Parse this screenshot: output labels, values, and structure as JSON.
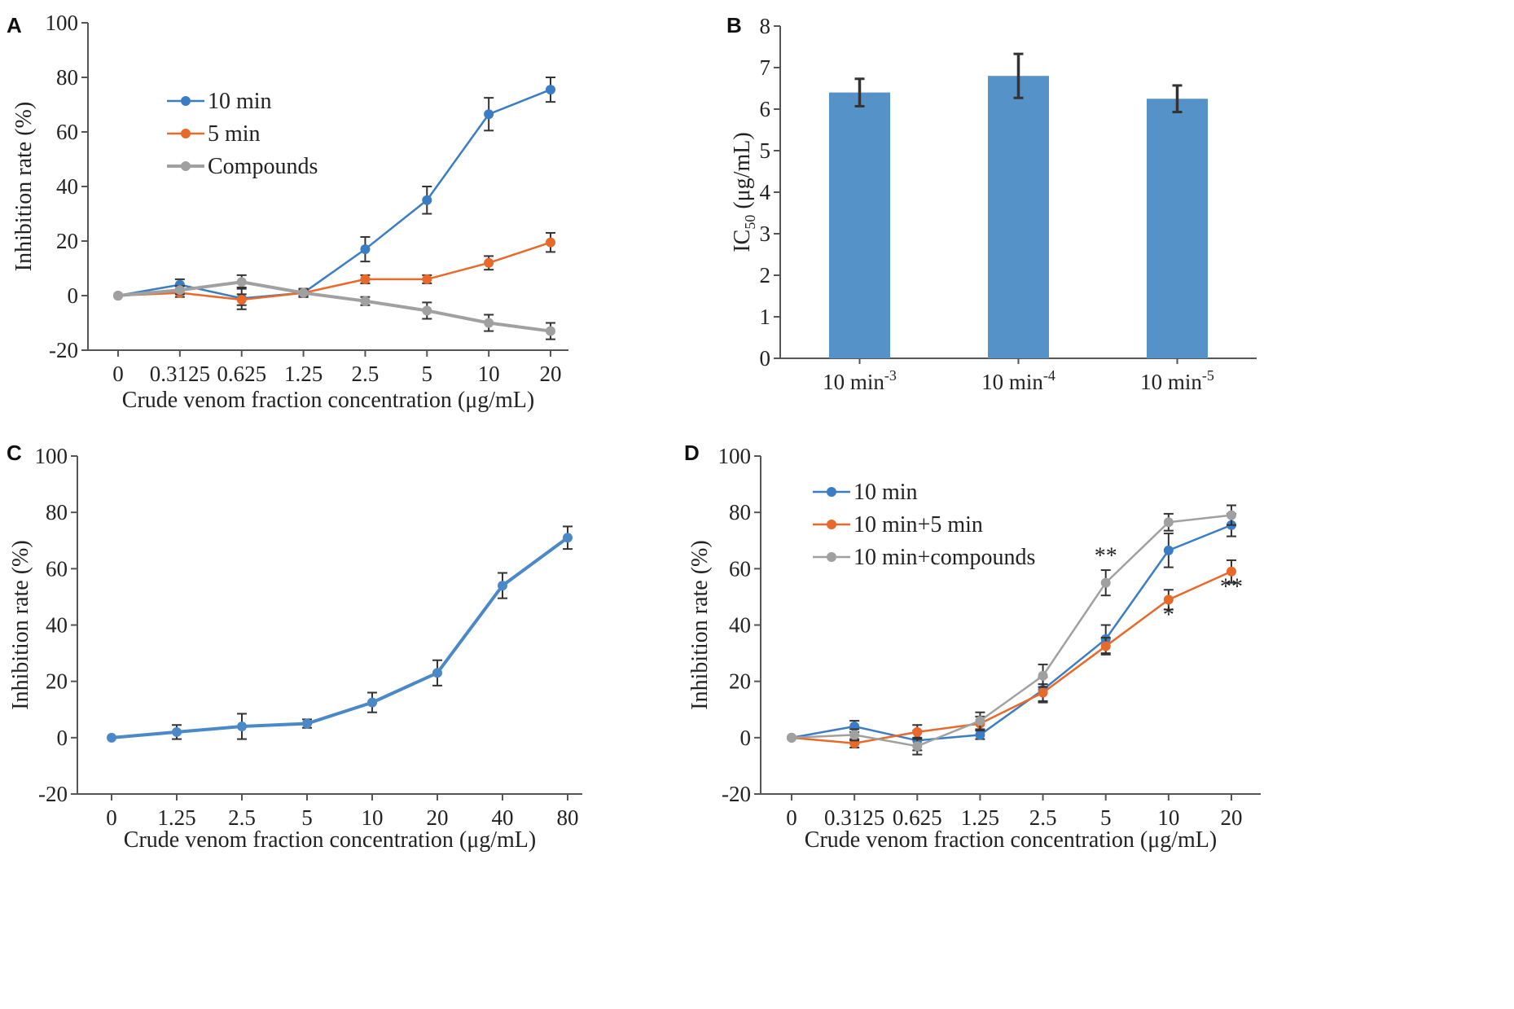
{
  "chart_data": [
    {
      "panel": "A",
      "type": "line",
      "categories": [
        "0",
        "0.3125",
        "0.625",
        "1.25",
        "2.5",
        "5",
        "10",
        "20"
      ],
      "ylabel": "Inhibition rate (%)",
      "xlabel": "Crude venom fraction concentration (μg/mL)",
      "ylim": [
        -20,
        100
      ],
      "yticks": [
        "100",
        "80",
        "60",
        "40",
        "20",
        "0",
        "-20"
      ],
      "grid": false,
      "legend_position": "top-left",
      "series": [
        {
          "name": "10 min",
          "color": "#3b7dc4",
          "values": [
            0,
            4,
            -1,
            1,
            17,
            35,
            66.5,
            75.5
          ],
          "errors": [
            0,
            2,
            4,
            1.5,
            4.5,
            5,
            6,
            4.5
          ]
        },
        {
          "name": "5 min",
          "color": "#e8692a",
          "values": [
            0,
            1,
            -1.5,
            1,
            6,
            6,
            12,
            19.5
          ],
          "errors": [
            0,
            1.5,
            2,
            1,
            1.5,
            1.5,
            2.5,
            3.5
          ]
        },
        {
          "name": "Compounds",
          "color": "#a0a0a0",
          "values": [
            0,
            2,
            5,
            1,
            -2,
            -5.5,
            -10,
            -13
          ],
          "errors": [
            0,
            1.5,
            2.5,
            1.5,
            1.5,
            3,
            3,
            3
          ]
        }
      ]
    },
    {
      "panel": "B",
      "type": "bar",
      "categories": [
        "10 min",
        "10 min",
        "10 min"
      ],
      "category_sup": [
        "-3",
        "-4",
        "-5"
      ],
      "ylabel_main": "IC",
      "ylabel_sub": "50",
      "ylabel_rest": " (μg/mL)",
      "ylim": [
        0,
        8
      ],
      "yticks": [
        "8",
        "7",
        "6",
        "5",
        "4",
        "3",
        "2",
        "1",
        "0"
      ],
      "color": "#5592c8",
      "values": [
        6.4,
        6.8,
        6.25
      ],
      "errors": [
        0.33,
        0.53,
        0.32
      ]
    },
    {
      "panel": "C",
      "type": "line",
      "categories": [
        "0",
        "1.25",
        "2.5",
        "5",
        "10",
        "20",
        "40",
        "80"
      ],
      "ylabel": "Inhibition rate (%)",
      "xlabel": "Crude venom fraction concentration (μg/mL)",
      "ylim": [
        -20,
        100
      ],
      "yticks": [
        "100",
        "80",
        "60",
        "40",
        "20",
        "0",
        "-20"
      ],
      "series": [
        {
          "color": "#4a88c8",
          "values": [
            0,
            2,
            4,
            5,
            12.5,
            23,
            54,
            71
          ],
          "errors": [
            0,
            2.5,
            4.5,
            1.5,
            3.5,
            4.5,
            4.5,
            4
          ]
        }
      ]
    },
    {
      "panel": "D",
      "type": "line",
      "categories": [
        "0",
        "0.3125",
        "0.625",
        "1.25",
        "2.5",
        "5",
        "10",
        "20"
      ],
      "ylabel": "Inhibition rate (%)",
      "xlabel": "Crude venom fraction concentration (μg/mL)",
      "ylim": [
        -20,
        100
      ],
      "yticks": [
        "100",
        "80",
        "60",
        "40",
        "20",
        "0",
        "-20"
      ],
      "legend_position": "top-left",
      "series": [
        {
          "name": "10 min",
          "color": "#3b7dc4",
          "values": [
            0,
            4,
            -1,
            1,
            17,
            35,
            66.5,
            75.5
          ],
          "errors": [
            0,
            2,
            3.5,
            1.5,
            4.5,
            5,
            6,
            4
          ]
        },
        {
          "name": "10 min+5 min",
          "color": "#e8692a",
          "values": [
            0,
            -2,
            2,
            5,
            16,
            32.5,
            49,
            59
          ],
          "errors": [
            0,
            1.5,
            2.5,
            2.5,
            3,
            3,
            3.5,
            4
          ]
        },
        {
          "name": "10 min+compounds",
          "color": "#a0a0a0",
          "values": [
            0,
            1,
            -3,
            6,
            22,
            55,
            76.5,
            79
          ],
          "errors": [
            0,
            2,
            3,
            3,
            4,
            4.5,
            3,
            3.5
          ]
        }
      ],
      "annotations": [
        {
          "text": "**",
          "category_index": 5,
          "y": 62
        },
        {
          "text": "*",
          "category_index": 6,
          "y": 41
        },
        {
          "text": "**",
          "category_index": 7,
          "y": 51
        }
      ]
    }
  ]
}
